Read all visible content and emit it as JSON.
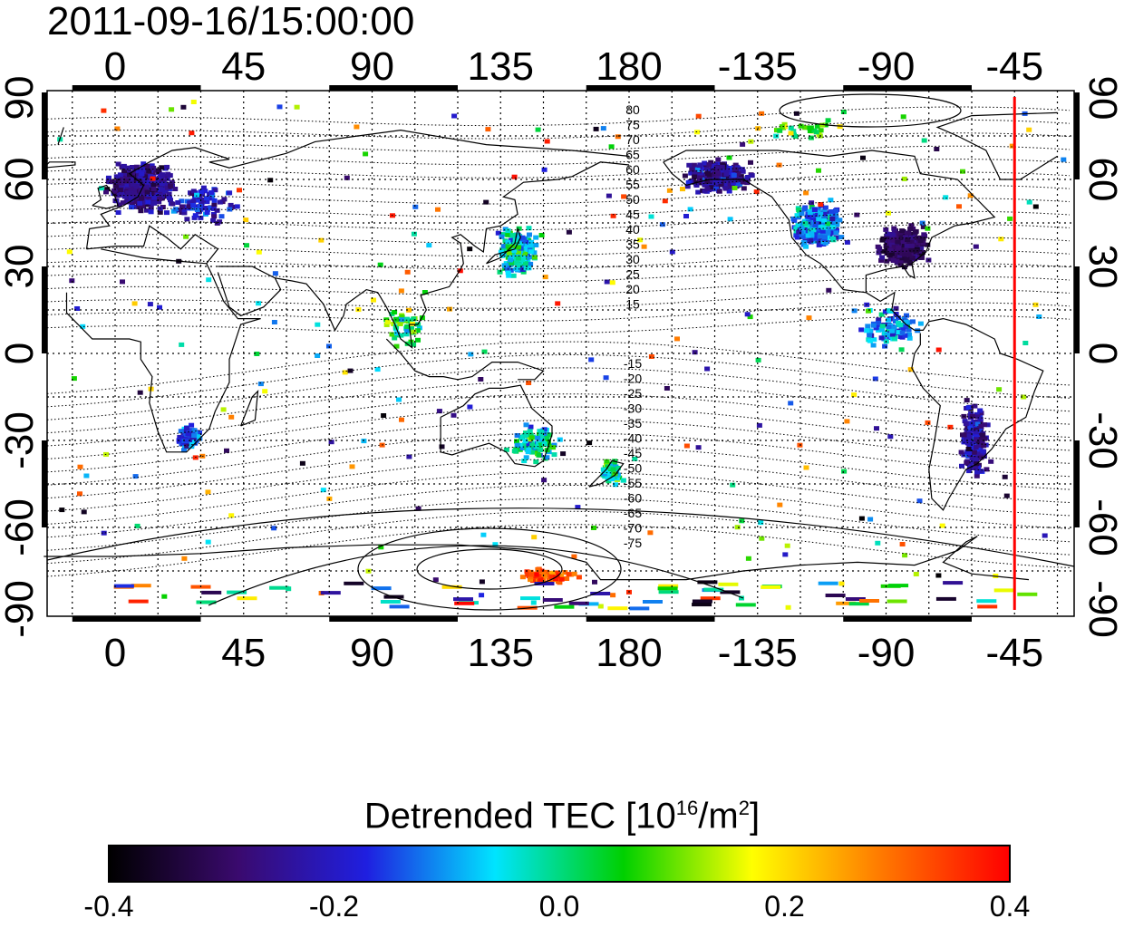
{
  "title": "2011-09-16/15:00:00",
  "map": {
    "lon_ticks": [
      "0",
      "45",
      "90",
      "135",
      "180",
      "-135",
      "-90",
      "-45"
    ],
    "lat_ticks_left": [
      "90",
      "60",
      "30",
      "0",
      "-30",
      "-60",
      "-90"
    ],
    "lat_ticks_right": [
      "90",
      "60",
      "30",
      "0",
      "-30",
      "-60",
      "-90"
    ],
    "contour_labels_north": [
      "80",
      "75",
      "70",
      "65",
      "60",
      "55",
      "50",
      "45",
      "40",
      "35",
      "30",
      "25",
      "20",
      "15"
    ],
    "contour_labels_south": [
      "-15",
      "-20",
      "-25",
      "-30",
      "-35",
      "-40",
      "-45",
      "-50",
      "-55",
      "-60",
      "-65",
      "-70",
      "-75"
    ],
    "meridian_marker_color": "#ff0000",
    "meridian_marker_lon": -45
  },
  "colorbar": {
    "label_main": "Detrended TEC  [10",
    "label_exp1": "16",
    "label_mid": "/m",
    "label_exp2": "2",
    "label_end": "]",
    "range": [
      -0.4,
      0.4
    ],
    "ticks": [
      "-0.4",
      "-0.2",
      "0.0",
      "0.2",
      "0.4"
    ],
    "colors": [
      "#000000",
      "#3a0a6e",
      "#1f1fe0",
      "#00e4ff",
      "#00d000",
      "#ffff00",
      "#ff7a00",
      "#ff0000"
    ]
  }
}
